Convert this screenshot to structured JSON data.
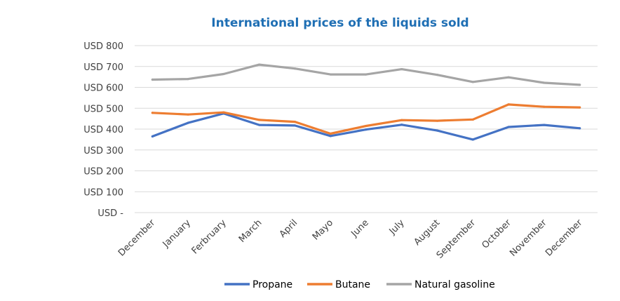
{
  "colors": {
    "title": "#1F6FB4",
    "grid": "#D9D9D9",
    "axis_text": "#404040",
    "Propane": "#4472C4",
    "Butane": "#ED7D31",
    "Natural gasoline": "#A5A5A5"
  },
  "chart_data": {
    "type": "line",
    "title": "International prices of the liquids sold",
    "xlabel": "",
    "ylabel": "",
    "categories": [
      "December",
      "January",
      "Ferbruary",
      "March",
      "April",
      "Mayo",
      "June",
      "July",
      "August",
      "September",
      "October",
      "November",
      "December"
    ],
    "yticks": [
      0,
      100,
      200,
      300,
      400,
      500,
      600,
      700,
      800
    ],
    "ytick_labels": [
      "USD -",
      "USD 100",
      "USD 200",
      "USD 300",
      "USD 400",
      "USD 500",
      "USD 600",
      "USD 700",
      "USD 800"
    ],
    "ylim": [
      0,
      800
    ],
    "grid": true,
    "legend_position": "bottom",
    "series": [
      {
        "name": "Propane",
        "values": [
          365,
          430,
          475,
          420,
          417,
          367,
          398,
          421,
          393,
          350,
          410,
          420,
          404
        ]
      },
      {
        "name": "Butane",
        "values": [
          478,
          470,
          480,
          444,
          435,
          378,
          415,
          443,
          440,
          446,
          518,
          507,
          504
        ]
      },
      {
        "name": "Natural gasoline",
        "values": [
          637,
          640,
          664,
          709,
          690,
          662,
          662,
          687,
          660,
          626,
          648,
          622,
          612
        ]
      }
    ]
  }
}
